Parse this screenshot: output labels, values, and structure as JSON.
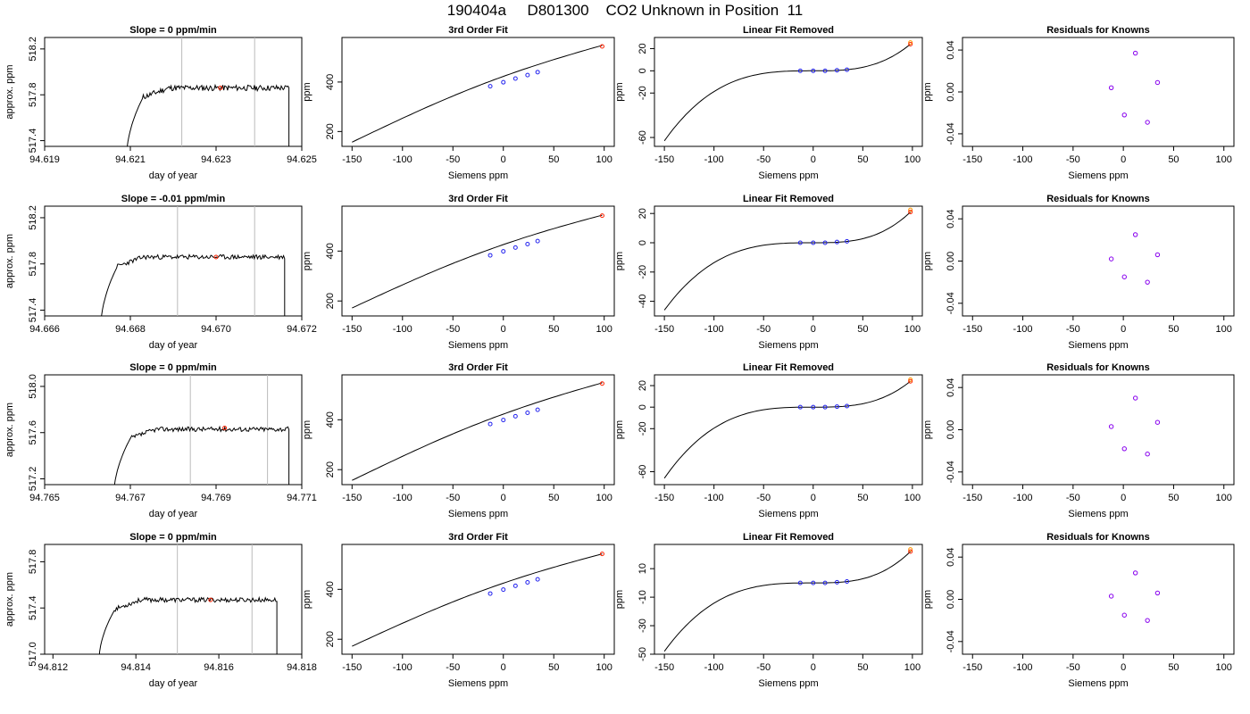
{
  "page_title": "190404a     D801300    CO2 Unknown in Position  11",
  "common": {
    "fit_title": "3rd Order Fit",
    "resid_title": "Residuals for Knowns",
    "linear_title": "Linear Fit Removed",
    "siemens_label": "Siemens ppm",
    "ppm_label": "ppm",
    "approx_label": "approx. ppm",
    "doy_label": "day of year"
  },
  "colors": {
    "line": "#000000",
    "known_point": "#2222ee",
    "unknown_point": "#ff2200",
    "flag_point": "#ff9900",
    "resid_point": "#8800ee",
    "marker_line": "#bbbbbb"
  },
  "rows": [
    {
      "time_title": "Slope =  0  ppm/min",
      "time_xticks": [
        "94.619",
        "94.621",
        "94.623",
        "94.625"
      ],
      "time_xmin": 94.619,
      "time_xmax": 94.625,
      "time_yticks": [
        "517.4",
        "517.8",
        "518.2"
      ],
      "time_ymin": 517.35,
      "time_ymax": 518.3,
      "trace": {
        "x_start": 94.6209,
        "x_rise_end": 94.6213,
        "x_end": 94.6247,
        "plateau": 517.86,
        "low": 517.2,
        "noise": 0.025,
        "seed": 11
      },
      "marker_lines": [
        94.6222,
        94.6239
      ],
      "mean_point": {
        "x": 94.6231,
        "y": 517.86
      },
      "fit_yticks": [
        "200",
        "400"
      ],
      "fit_ymin": 140,
      "fit_ymax": 580,
      "fit_curve_start": 157,
      "fit_curve_end": 548,
      "known_x": [
        -13,
        0,
        12,
        24,
        34
      ],
      "known_y": [
        383,
        399,
        414,
        428,
        440
      ],
      "unknown": {
        "x": 98,
        "y": 544
      },
      "lin_yticks": [
        "20",
        "0",
        "-20",
        "-60"
      ],
      "lin_ymin": -68,
      "lin_ymax": 30,
      "lin_start": -63,
      "lin_end": 24,
      "lin_known": [
        0,
        0,
        0,
        0.5,
        1
      ],
      "resid_yticks": [
        "0.04",
        "0.00",
        "-0.04"
      ],
      "resid_ymin": -0.052,
      "resid_ymax": 0.052,
      "resid": [
        {
          "x": -12,
          "y": 0.004
        },
        {
          "x": 1,
          "y": -0.022
        },
        {
          "x": 12,
          "y": 0.037
        },
        {
          "x": 24,
          "y": -0.029
        },
        {
          "x": 34,
          "y": 0.009
        }
      ]
    },
    {
      "time_title": "Slope =  -0.01  ppm/min",
      "time_xticks": [
        "94.666",
        "94.668",
        "94.670",
        "94.672"
      ],
      "time_xmin": 94.666,
      "time_xmax": 94.672,
      "time_yticks": [
        "517.4",
        "517.8",
        "518.2"
      ],
      "time_ymin": 517.35,
      "time_ymax": 518.3,
      "trace": {
        "x_start": 94.6673,
        "x_rise_end": 94.6677,
        "x_end": 94.6716,
        "plateau": 517.86,
        "low": 517.2,
        "noise": 0.02,
        "seed": 23
      },
      "marker_lines": [
        94.6691,
        94.6709
      ],
      "mean_point": {
        "x": 94.67,
        "y": 517.86
      },
      "fit_yticks": [
        "200",
        "400"
      ],
      "fit_ymin": 140,
      "fit_ymax": 580,
      "fit_curve_start": 172,
      "fit_curve_end": 544,
      "known_x": [
        -13,
        0,
        12,
        24,
        34
      ],
      "known_y": [
        383,
        399,
        414,
        428,
        440
      ],
      "unknown": {
        "x": 98,
        "y": 542
      },
      "lin_yticks": [
        "20",
        "0",
        "-20",
        "-40"
      ],
      "lin_ymin": -50,
      "lin_ymax": 25,
      "lin_start": -46,
      "lin_end": 21,
      "lin_known": [
        0,
        0,
        0,
        0.5,
        1
      ],
      "resid_yticks": [
        "0.04",
        "0.00",
        "-0.04"
      ],
      "resid_ymin": -0.052,
      "resid_ymax": 0.052,
      "resid": [
        {
          "x": -12,
          "y": 0.002
        },
        {
          "x": 1,
          "y": -0.015
        },
        {
          "x": 12,
          "y": 0.025
        },
        {
          "x": 24,
          "y": -0.02
        },
        {
          "x": 34,
          "y": 0.006
        }
      ]
    },
    {
      "time_title": "Slope =  0  ppm/min",
      "time_xticks": [
        "94.765",
        "94.767",
        "94.769",
        "94.771"
      ],
      "time_xmin": 94.765,
      "time_xmax": 94.771,
      "time_yticks": [
        "517.2",
        "517.6",
        "518.0"
      ],
      "time_ymin": 517.15,
      "time_ymax": 518.1,
      "trace": {
        "x_start": 94.7666,
        "x_rise_end": 94.767,
        "x_end": 94.7707,
        "plateau": 517.63,
        "low": 517.0,
        "noise": 0.02,
        "seed": 37
      },
      "marker_lines": [
        94.7684,
        94.7702
      ],
      "mean_point": {
        "x": 94.7692,
        "y": 517.64
      },
      "fit_yticks": [
        "200",
        "400"
      ],
      "fit_ymin": 140,
      "fit_ymax": 580,
      "fit_curve_start": 157,
      "fit_curve_end": 548,
      "known_x": [
        -13,
        0,
        12,
        24,
        34
      ],
      "known_y": [
        383,
        399,
        414,
        428,
        440
      ],
      "unknown": {
        "x": 98,
        "y": 545
      },
      "lin_yticks": [
        "20",
        "0",
        "-20",
        "-60"
      ],
      "lin_ymin": -72,
      "lin_ymax": 30,
      "lin_start": -66,
      "lin_end": 24,
      "lin_known": [
        0,
        0,
        0,
        0.5,
        1
      ],
      "resid_yticks": [
        "0.04",
        "0.00",
        "-0.04"
      ],
      "resid_ymin": -0.052,
      "resid_ymax": 0.052,
      "resid": [
        {
          "x": -12,
          "y": 0.003
        },
        {
          "x": 1,
          "y": -0.018
        },
        {
          "x": 12,
          "y": 0.03
        },
        {
          "x": 24,
          "y": -0.023
        },
        {
          "x": 34,
          "y": 0.007
        }
      ]
    },
    {
      "time_title": "Slope =  0  ppm/min",
      "time_xticks": [
        "94.812",
        "94.814",
        "94.816",
        "94.818"
      ],
      "time_xmin": 94.8118,
      "time_xmax": 94.818,
      "time_yticks": [
        "517.0",
        "517.4",
        "517.8"
      ],
      "time_ymin": 517.0,
      "time_ymax": 517.95,
      "trace": {
        "x_start": 94.8131,
        "x_rise_end": 94.8135,
        "x_end": 94.8174,
        "plateau": 517.47,
        "low": 516.9,
        "noise": 0.02,
        "seed": 53
      },
      "marker_lines": [
        94.815,
        94.8168
      ],
      "mean_point": {
        "x": 94.8158,
        "y": 517.47
      },
      "fit_yticks": [
        "200",
        "400"
      ],
      "fit_ymin": 140,
      "fit_ymax": 580,
      "fit_curve_start": 172,
      "fit_curve_end": 542,
      "known_x": [
        -13,
        0,
        12,
        24,
        34
      ],
      "known_y": [
        383,
        399,
        414,
        428,
        440
      ],
      "unknown": {
        "x": 98,
        "y": 542
      },
      "lin_yticks": [
        "10",
        "-10",
        "-30",
        "-50"
      ],
      "lin_ymin": -50,
      "lin_ymax": 27,
      "lin_start": -48,
      "lin_end": 22,
      "lin_known": [
        0,
        0,
        0,
        0.5,
        1
      ],
      "resid_yticks": [
        "0.04",
        "0.00",
        "-0.04"
      ],
      "resid_ymin": -0.052,
      "resid_ymax": 0.052,
      "resid": [
        {
          "x": -12,
          "y": 0.003
        },
        {
          "x": 1,
          "y": -0.015
        },
        {
          "x": 12,
          "y": 0.025
        },
        {
          "x": 24,
          "y": -0.02
        },
        {
          "x": 34,
          "y": 0.006
        }
      ]
    }
  ],
  "x_ticks_siemens": [
    "-150",
    "-100",
    "-50",
    "0",
    "50",
    "100"
  ],
  "chart_data": [
    {
      "type": "line",
      "title": "Slope =  0  ppm/min",
      "xlabel": "day of year",
      "ylabel": "approx. ppm",
      "xlim": [
        94.619,
        94.625
      ],
      "ylim": [
        517.35,
        518.3
      ],
      "plateau": 517.86
    },
    {
      "type": "line",
      "title": "3rd Order Fit",
      "xlabel": "Siemens ppm",
      "ylabel": "ppm",
      "xlim": [
        -150,
        100
      ],
      "known": {
        "x": [
          -13,
          0,
          12,
          24,
          34
        ],
        "y": [
          383,
          399,
          414,
          428,
          440
        ]
      },
      "unknown": {
        "x": 98,
        "y": 544
      }
    },
    {
      "type": "line",
      "title": "Linear Fit Removed",
      "xlabel": "Siemens ppm",
      "ylabel": "ppm",
      "xlim": [
        -150,
        100
      ],
      "ylim": [
        -68,
        30
      ]
    },
    {
      "type": "scatter",
      "title": "Residuals for Knowns",
      "xlabel": "Siemens ppm",
      "ylabel": "ppm",
      "xlim": [
        -150,
        100
      ],
      "ylim": [
        -0.052,
        0.052
      ],
      "x": [
        -12,
        1,
        12,
        24,
        34
      ],
      "y": [
        0.004,
        -0.022,
        0.037,
        -0.029,
        0.009
      ]
    }
  ]
}
